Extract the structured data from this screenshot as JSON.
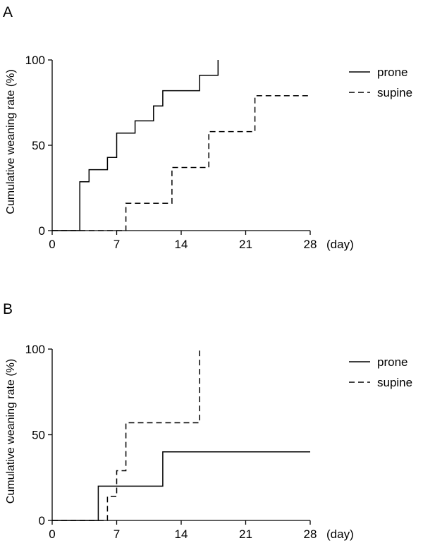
{
  "chart_data": [
    {
      "panel": "A",
      "type": "line",
      "ylabel": "Cumulative weaning rate (%)",
      "xunit": "(day)",
      "xlim": [
        0,
        28
      ],
      "ylim": [
        0,
        100
      ],
      "xticks": [
        0,
        7,
        14,
        21,
        28
      ],
      "yticks": [
        0,
        50,
        100
      ],
      "legend_position": "top-right",
      "series": [
        {
          "name": "prone",
          "style": "solid",
          "points": [
            [
              0,
              0
            ],
            [
              3,
              0
            ],
            [
              3,
              28.6
            ],
            [
              4,
              28.6
            ],
            [
              4,
              35.7
            ],
            [
              6,
              35.7
            ],
            [
              6,
              42.9
            ],
            [
              7,
              42.9
            ],
            [
              7,
              57.1
            ],
            [
              9,
              57.1
            ],
            [
              9,
              64.3
            ],
            [
              11,
              64.3
            ],
            [
              11,
              73
            ],
            [
              12,
              73
            ],
            [
              12,
              82
            ],
            [
              16,
              82
            ],
            [
              16,
              91
            ],
            [
              18,
              91
            ],
            [
              18,
              100
            ]
          ]
        },
        {
          "name": "supine",
          "style": "dashed",
          "points": [
            [
              0,
              0
            ],
            [
              8,
              0
            ],
            [
              8,
              16
            ],
            [
              13,
              16
            ],
            [
              13,
              37
            ],
            [
              17,
              37
            ],
            [
              17,
              58
            ],
            [
              22,
              58
            ],
            [
              22,
              79
            ],
            [
              28,
              79
            ]
          ]
        }
      ]
    },
    {
      "panel": "B",
      "type": "line",
      "ylabel": "Cumulative weaning rate (%)",
      "xunit": "(day)",
      "xlim": [
        0,
        28
      ],
      "ylim": [
        0,
        100
      ],
      "xticks": [
        0,
        7,
        14,
        21,
        28
      ],
      "yticks": [
        0,
        50,
        100
      ],
      "legend_position": "top-right",
      "series": [
        {
          "name": "prone",
          "style": "solid",
          "points": [
            [
              0,
              0
            ],
            [
              5,
              0
            ],
            [
              5,
              20
            ],
            [
              12,
              20
            ],
            [
              12,
              40
            ],
            [
              28,
              40
            ]
          ]
        },
        {
          "name": "supine",
          "style": "dashed",
          "points": [
            [
              0,
              0
            ],
            [
              6,
              0
            ],
            [
              6,
              14
            ],
            [
              7,
              14
            ],
            [
              7,
              29
            ],
            [
              8,
              29
            ],
            [
              8,
              57
            ],
            [
              16,
              57
            ],
            [
              16,
              100
            ]
          ]
        }
      ]
    }
  ]
}
